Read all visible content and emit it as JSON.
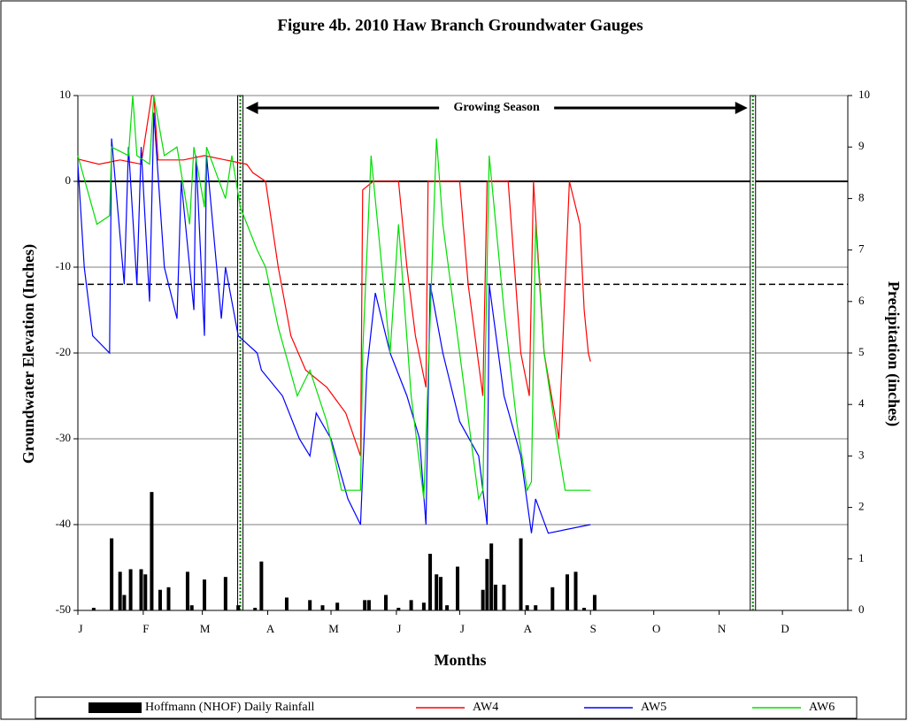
{
  "chart_data": {
    "type": "line",
    "title": "Figure 4b.  2010 Haw Branch Groundwater Gauges",
    "xlabel": "Months",
    "ylabel": "Groundwater Elevation (Inches)",
    "y2label": "Precipitation (inches)",
    "annotation": "Growing Season",
    "growing_season": [
      77,
      320
    ],
    "hlines": [
      {
        "value": 0,
        "style": "solid"
      },
      {
        "value": -12,
        "style": "dashed"
      }
    ],
    "grid": true,
    "xlim": [
      0,
      365
    ],
    "xticks": [
      {
        "value": 0,
        "label": "J"
      },
      {
        "value": 31,
        "label": "F"
      },
      {
        "value": 59,
        "label": "M"
      },
      {
        "value": 90,
        "label": "A"
      },
      {
        "value": 120,
        "label": "M"
      },
      {
        "value": 151,
        "label": "J"
      },
      {
        "value": 181,
        "label": "J"
      },
      {
        "value": 212,
        "label": "A"
      },
      {
        "value": 243,
        "label": "S"
      },
      {
        "value": 273,
        "label": "O"
      },
      {
        "value": 304,
        "label": "N"
      },
      {
        "value": 334,
        "label": "D"
      }
    ],
    "ylim": [
      -50,
      10
    ],
    "yticks": [
      -50,
      -40,
      -30,
      -20,
      -10,
      0,
      10
    ],
    "y2lim": [
      0,
      10
    ],
    "y2ticks": [
      0,
      1,
      2,
      3,
      4,
      5,
      6,
      7,
      8,
      9,
      10
    ],
    "series": [
      {
        "name": "Hoffmann (NHOF) Daily Rainfall",
        "color": "#000000",
        "type": "bar",
        "axis": "y2",
        "x": [
          7.5,
          16,
          20,
          22,
          25,
          30,
          32,
          35,
          39,
          43,
          52,
          54,
          60,
          70,
          76,
          84,
          87,
          99,
          110,
          116,
          123,
          136,
          138,
          146,
          152,
          158,
          164,
          167,
          170,
          172,
          175,
          180,
          192,
          194,
          196,
          198,
          202,
          210,
          213,
          217,
          225,
          232,
          236,
          240,
          245
        ],
        "values": [
          0.05,
          1.4,
          0.75,
          0.3,
          0.8,
          0.8,
          0.7,
          2.3,
          0.4,
          0.45,
          0.75,
          0.1,
          0.6,
          0.65,
          0.1,
          0.05,
          0.95,
          0.25,
          0.2,
          0.1,
          0.15,
          0.2,
          0.2,
          0.3,
          0.05,
          0.2,
          0.15,
          1.1,
          0.7,
          0.65,
          0.1,
          0.85,
          0.4,
          1.0,
          1.3,
          0.5,
          0.5,
          1.4,
          0.1,
          0.1,
          0.45,
          0.7,
          0.75,
          0.05,
          0.3
        ]
      },
      {
        "name": "AW4",
        "color": "#ff0000",
        "x": [
          0,
          10,
          20,
          30,
          35,
          36,
          38,
          50,
          60,
          70,
          80,
          83,
          89,
          95,
          101,
          108,
          118,
          127,
          134,
          135,
          140,
          152,
          156,
          160,
          165,
          166,
          175,
          181,
          185,
          192,
          194,
          204,
          210,
          214,
          216,
          221,
          228,
          233,
          238,
          240,
          242,
          243
        ],
        "values": [
          2.6,
          2,
          2.5,
          2,
          10,
          10,
          2.5,
          2.5,
          3,
          2.5,
          2,
          1,
          0,
          -10,
          -18,
          -22,
          -24,
          -27,
          -32,
          -1,
          0,
          0,
          -10,
          -18,
          -24,
          0,
          0,
          0,
          -12,
          -25,
          0,
          0,
          -20,
          -25,
          0,
          -20,
          -30,
          0,
          -5,
          -15,
          -20,
          -21
        ]
      },
      {
        "name": "AW5",
        "color": "#0000ff",
        "x": [
          0,
          3,
          7,
          15,
          16,
          22,
          24,
          28,
          30,
          34,
          36,
          41,
          47,
          49,
          55,
          56,
          60,
          61,
          68,
          70,
          76,
          85,
          87,
          97,
          105,
          110,
          113,
          120,
          128,
          134,
          137,
          141,
          148,
          156,
          162,
          165,
          167,
          173,
          181,
          190,
          194,
          195,
          202,
          210,
          215,
          217,
          223,
          243
        ],
        "values": [
          2,
          -10,
          -18,
          -20,
          5,
          -12,
          4,
          -12,
          4,
          -14,
          8,
          -10,
          -16,
          0,
          -15,
          3,
          -18,
          3,
          -16,
          -10,
          -18,
          -20,
          -22,
          -25,
          -30,
          -32,
          -27,
          -30,
          -37,
          -40,
          -22,
          -13,
          -20,
          -25,
          -30,
          -40,
          -12,
          -20,
          -28,
          -32,
          -40,
          -12,
          -25,
          -32,
          -41,
          -37,
          -41,
          -40
        ]
      },
      {
        "name": "AW6",
        "color": "#00dd00",
        "x": [
          0,
          9,
          15,
          16,
          24,
          26,
          28,
          34,
          36,
          41,
          47,
          53,
          55,
          60,
          61,
          70,
          73,
          77,
          85,
          89,
          95,
          104,
          110,
          118,
          125,
          134,
          135,
          139,
          148,
          152,
          158,
          164,
          170,
          173,
          181,
          190,
          192,
          195,
          202,
          208,
          213,
          215,
          217,
          221,
          227,
          231,
          243
        ],
        "values": [
          3,
          -5,
          -4,
          4,
          3,
          10,
          3,
          2,
          10,
          3,
          4,
          -5,
          4,
          -3,
          4,
          -2,
          3,
          -3,
          -8,
          -10,
          -17,
          -25,
          -22,
          -28,
          -36,
          -36,
          -20,
          3,
          -20,
          -5,
          -25,
          -37,
          5,
          -5,
          -20,
          -37,
          -36,
          3,
          -15,
          -28,
          -36,
          -35,
          -5,
          -20,
          -30,
          -36,
          -36
        ]
      }
    ]
  }
}
